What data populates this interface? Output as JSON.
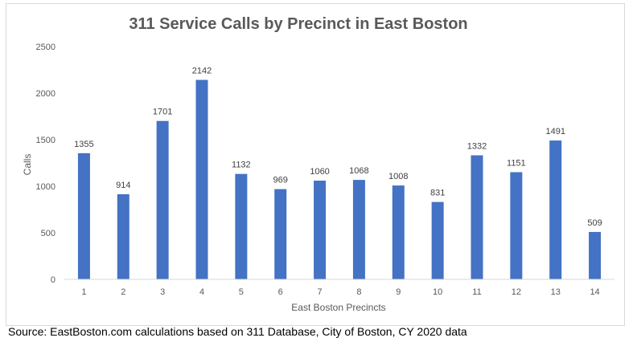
{
  "chart_data": {
    "type": "bar",
    "title": "311 Service Calls by Precinct in East Boston",
    "xlabel": "East Boston Precincts",
    "ylabel": "Calls",
    "categories": [
      "1",
      "2",
      "3",
      "4",
      "5",
      "6",
      "7",
      "8",
      "9",
      "10",
      "11",
      "12",
      "13",
      "14"
    ],
    "values": [
      1355,
      914,
      1701,
      2142,
      1132,
      969,
      1060,
      1068,
      1008,
      831,
      1332,
      1151,
      1491,
      509
    ],
    "ylim": [
      0,
      2500
    ],
    "yticks": [
      0,
      500,
      1000,
      1500,
      2000,
      2500
    ],
    "grid": false,
    "legend": "none",
    "bar_color": "#4472c4",
    "data_labels": true
  },
  "source_note": "Source: EastBoston.com calculations based on 311 Database, City of Boston, CY 2020 data"
}
